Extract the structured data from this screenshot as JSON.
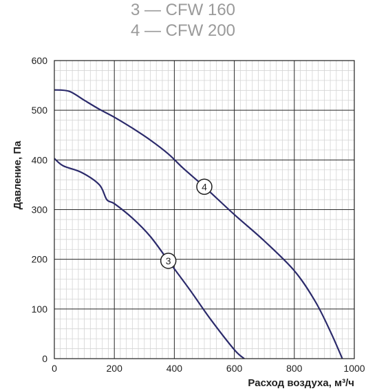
{
  "legend": [
    "3 — CFW 160",
    "4 — CFW 200"
  ],
  "chart_data": {
    "type": "line",
    "xlabel": "Расход воздуха, м³/ч",
    "ylabel": "Давление, Па",
    "xlim": [
      0,
      1000
    ],
    "ylim": [
      0,
      600
    ],
    "x_ticks": [
      "0",
      "200",
      "400",
      "600",
      "800",
      "1000"
    ],
    "y_ticks": [
      "0",
      "100",
      "200",
      "300",
      "400",
      "500",
      "600"
    ],
    "grid": true,
    "series": [
      {
        "name": "3",
        "color": "#2b2a6b",
        "x": [
          0,
          30,
          90,
          150,
          175,
          200,
          260,
          320,
          380,
          450,
          520,
          600,
          633
        ],
        "y": [
          403,
          388,
          375,
          350,
          320,
          312,
          283,
          246,
          197,
          140,
          80,
          18,
          0
        ]
      },
      {
        "name": "4",
        "color": "#2b2a6b",
        "x": [
          0,
          50,
          100,
          150,
          200,
          260,
          320,
          380,
          430,
          500,
          600,
          700,
          800,
          870,
          920,
          960
        ],
        "y": [
          541,
          538,
          520,
          502,
          486,
          464,
          440,
          412,
          383,
          346,
          290,
          237,
          177,
          115,
          55,
          0
        ]
      }
    ]
  }
}
